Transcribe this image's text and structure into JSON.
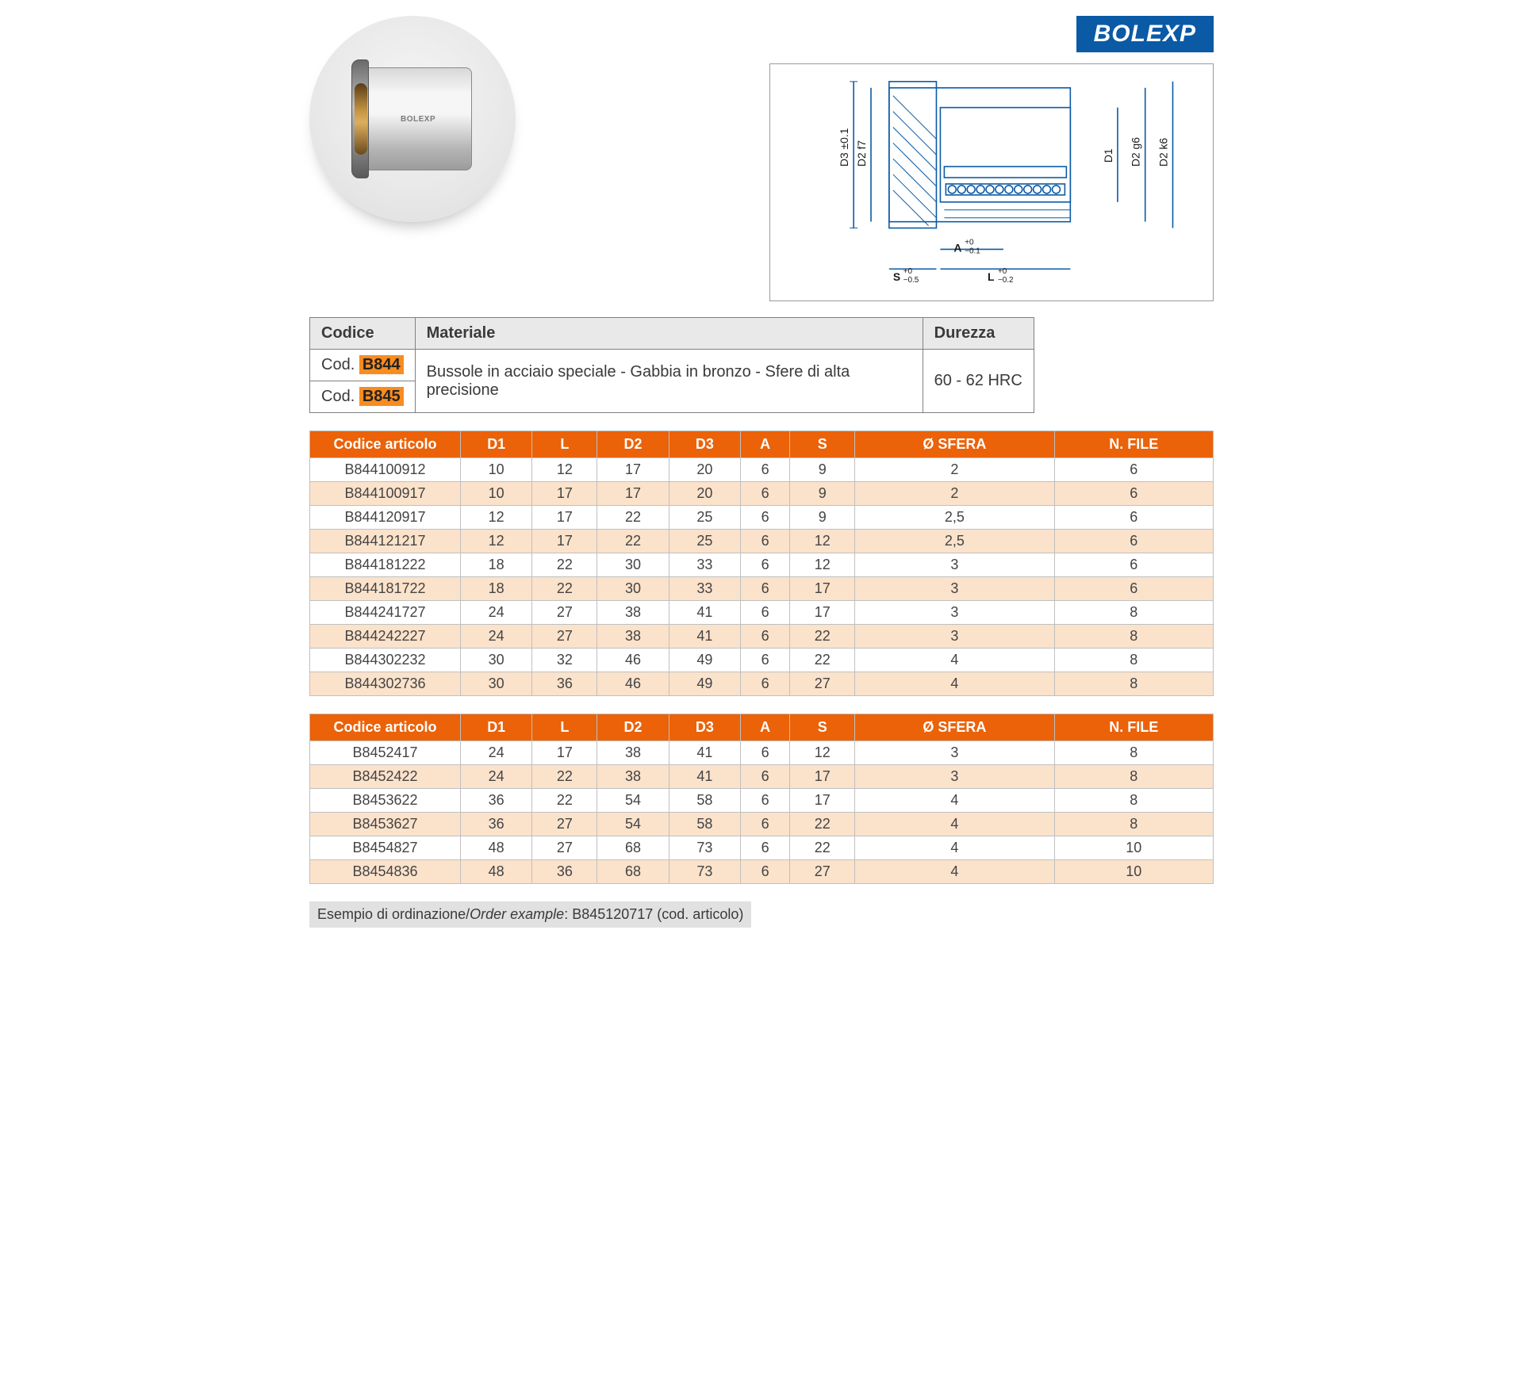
{
  "brand": "BOLEXP",
  "product_label": "BOLEXP",
  "colors": {
    "brand_bg": "#0a5aa6",
    "header_bg": "#eb6209",
    "alt_row": "#fbe2cb",
    "highlight": "#f98c1f",
    "grid_border": "#c0c0c0",
    "drawing_stroke": "#0a5aa6"
  },
  "material_table": {
    "headers": {
      "codice": "Codice",
      "materiale": "Materiale",
      "durezza": "Durezza"
    },
    "codes": {
      "prefix": "Cod.",
      "c1": "B844",
      "c2": "B845"
    },
    "material_text": "Bussole in acciaio speciale - Gabbia in bronzo - Sfere di alta precisione",
    "hardness": "60 - 62 HRC"
  },
  "table_headers": {
    "codice_articolo": "Codice articolo",
    "d1": "D1",
    "l": "L",
    "d2": "D2",
    "d3": "D3",
    "a": "A",
    "s": "S",
    "sfera": "Ø SFERA",
    "nfile": "N. FILE"
  },
  "table1_rows": [
    [
      "B844100912",
      "10",
      "12",
      "17",
      "20",
      "6",
      "9",
      "2",
      "6"
    ],
    [
      "B844100917",
      "10",
      "17",
      "17",
      "20",
      "6",
      "9",
      "2",
      "6"
    ],
    [
      "B844120917",
      "12",
      "17",
      "22",
      "25",
      "6",
      "9",
      "2,5",
      "6"
    ],
    [
      "B844121217",
      "12",
      "17",
      "22",
      "25",
      "6",
      "12",
      "2,5",
      "6"
    ],
    [
      "B844181222",
      "18",
      "22",
      "30",
      "33",
      "6",
      "12",
      "3",
      "6"
    ],
    [
      "B844181722",
      "18",
      "22",
      "30",
      "33",
      "6",
      "17",
      "3",
      "6"
    ],
    [
      "B844241727",
      "24",
      "27",
      "38",
      "41",
      "6",
      "17",
      "3",
      "8"
    ],
    [
      "B844242227",
      "24",
      "27",
      "38",
      "41",
      "6",
      "22",
      "3",
      "8"
    ],
    [
      "B844302232",
      "30",
      "32",
      "46",
      "49",
      "6",
      "22",
      "4",
      "8"
    ],
    [
      "B844302736",
      "30",
      "36",
      "46",
      "49",
      "6",
      "27",
      "4",
      "8"
    ]
  ],
  "table2_rows": [
    [
      "B8452417",
      "24",
      "17",
      "38",
      "41",
      "6",
      "12",
      "3",
      "8"
    ],
    [
      "B8452422",
      "24",
      "22",
      "38",
      "41",
      "6",
      "17",
      "3",
      "8"
    ],
    [
      "B8453622",
      "36",
      "22",
      "54",
      "58",
      "6",
      "17",
      "4",
      "8"
    ],
    [
      "B8453627",
      "36",
      "27",
      "54",
      "58",
      "6",
      "22",
      "4",
      "8"
    ],
    [
      "B8454827",
      "48",
      "27",
      "68",
      "73",
      "6",
      "22",
      "4",
      "10"
    ],
    [
      "B8454836",
      "48",
      "36",
      "68",
      "73",
      "6",
      "27",
      "4",
      "10"
    ]
  ],
  "drawing_labels": {
    "d3": "D3 ±0.1",
    "d2f7": "D2 f7",
    "d1": "D1",
    "d2g6": "D2 g6",
    "d2k6": "D2 k6",
    "a": "A",
    "a_tol_top": "+0",
    "a_tol_bot": "−0.1",
    "s": "S",
    "s_tol_top": "+0",
    "s_tol_bot": "−0.5",
    "l": "L",
    "l_tol_top": "+0",
    "l_tol_bot": "−0.2"
  },
  "order_example": {
    "prefix": "Esempio di ordinazione/",
    "italic": "Order example",
    "suffix": ": B845120717 (cod. articolo)"
  }
}
